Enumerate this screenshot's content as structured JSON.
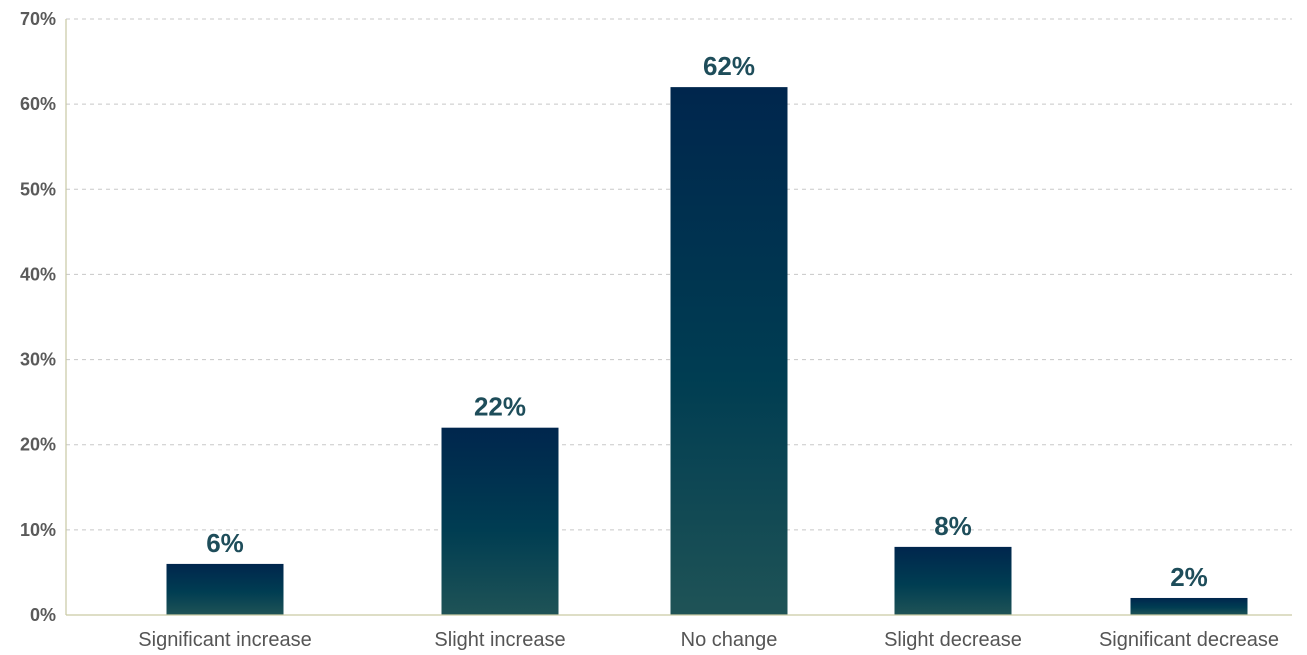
{
  "chart_data": {
    "type": "bar",
    "categories": [
      "Significant increase",
      "Slight increase",
      "No change",
      "Slight decrease",
      "Significant decrease"
    ],
    "values": [
      6,
      22,
      62,
      8,
      2
    ],
    "value_labels": [
      "6%",
      "22%",
      "62%",
      "8%",
      "2%"
    ],
    "ylim": [
      0,
      70
    ],
    "yticks": [
      0,
      10,
      20,
      30,
      40,
      50,
      60,
      70
    ],
    "ytick_labels": [
      "0%",
      "10%",
      "20%",
      "30%",
      "40%",
      "50%",
      "60%",
      "70%"
    ],
    "grid": true,
    "colors": {
      "bar_top": "#00264d",
      "bar_bottom": "#1f5356",
      "value_label": "#1e4d5a"
    }
  }
}
